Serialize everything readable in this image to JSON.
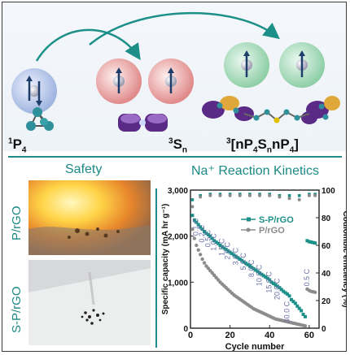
{
  "top_panel": {
    "species_1": {
      "main": "P",
      "sup": "1",
      "sub": "4"
    },
    "species_2": {
      "main": "S",
      "sup": "3",
      "sub": "n"
    },
    "species_3": {
      "prefix": "3",
      "text": "[nP",
      "s1": "4",
      "mid": "S",
      "s2": "n",
      "mid2": "nP",
      "s3": "4",
      "end": "]"
    }
  },
  "bottom_panel": {
    "safety_title": "Safety",
    "kinetics_title": "Na⁺ Reaction Kinetics",
    "photo_labels": [
      "P/rGO",
      "S-P/rGO"
    ]
  },
  "chart_data": {
    "type": "scatter",
    "xlabel": "Cycle number",
    "ylabel_left": "Specific capacity (mA hr g⁻¹)",
    "ylabel_right": "Coulombic efficiency (%)",
    "xlim": [
      0,
      65
    ],
    "ylim_left": [
      0,
      3000
    ],
    "ylim_right": [
      0,
      100
    ],
    "x_ticks": [
      "0",
      "20",
      "40",
      "60"
    ],
    "y_ticks_left": [
      "0",
      "1,000",
      "2,000",
      "3,000"
    ],
    "y_ticks_right": [
      "0",
      "20",
      "40",
      "60",
      "80",
      "100"
    ],
    "legend": [
      "S-P/rGO",
      "P/rGO"
    ],
    "rate_labels": [
      "0.1 C",
      "0.2 C",
      "0.5 C",
      "1.0 C",
      "1.5 C",
      "2.0 C",
      "3.0 C",
      "5.0 C",
      "8.0 C",
      "10.0 C",
      "15.0 C",
      "20.0 C",
      "30.0 C",
      "0.5 C"
    ],
    "series": [
      {
        "name": "S-P/rGO",
        "color": "#1b8f88",
        "x": [
          1,
          2,
          3,
          4,
          5,
          6,
          7,
          8,
          9,
          10,
          11,
          12,
          13,
          14,
          15,
          16,
          17,
          18,
          19,
          20,
          21,
          22,
          23,
          24,
          25,
          26,
          27,
          28,
          29,
          30,
          31,
          32,
          33,
          34,
          35,
          36,
          37,
          38,
          39,
          40,
          41,
          42,
          43,
          44,
          45,
          46,
          47,
          48,
          49,
          50,
          51,
          52,
          53,
          54,
          55,
          56,
          57,
          58,
          59,
          60,
          61,
          62,
          63
        ],
        "values": [
          2450,
          2350,
          2300,
          2250,
          2200,
          2150,
          2100,
          2060,
          2030,
          2000,
          1950,
          1900,
          1870,
          1840,
          1800,
          1770,
          1740,
          1710,
          1680,
          1650,
          1620,
          1590,
          1560,
          1530,
          1500,
          1470,
          1440,
          1410,
          1380,
          1350,
          1320,
          1290,
          1260,
          1230,
          1200,
          1170,
          1140,
          1110,
          1080,
          1050,
          1000,
          970,
          940,
          910,
          880,
          840,
          800,
          770,
          740,
          700,
          620,
          580,
          540,
          480,
          430,
          380,
          300,
          250,
          1900,
          1880,
          1870,
          1860,
          1850
        ]
      },
      {
        "name": "P/rGO",
        "color": "#8c8c8c",
        "x": [
          1,
          2,
          3,
          4,
          5,
          6,
          7,
          8,
          9,
          10,
          11,
          12,
          13,
          14,
          15,
          16,
          17,
          18,
          19,
          20,
          21,
          22,
          23,
          24,
          25,
          26,
          27,
          28,
          29,
          30,
          31,
          32,
          33,
          34,
          35,
          36,
          37,
          38,
          39,
          40,
          41,
          42,
          43,
          44,
          45,
          46,
          47,
          48,
          49,
          50,
          51,
          52,
          53,
          54,
          55,
          56,
          57,
          58,
          59,
          60,
          61,
          62,
          63
        ],
        "values": [
          2150,
          1950,
          1800,
          1700,
          1600,
          1500,
          1420,
          1350,
          1300,
          1250,
          1200,
          1150,
          1100,
          1050,
          1000,
          960,
          920,
          880,
          840,
          800,
          760,
          720,
          690,
          660,
          630,
          600,
          570,
          540,
          510,
          480,
          450,
          420,
          400,
          380,
          360,
          340,
          320,
          300,
          280,
          260,
          240,
          220,
          200,
          190,
          180,
          170,
          160,
          150,
          140,
          130,
          120,
          110,
          100,
          90,
          80,
          70,
          60,
          50,
          850,
          820,
          800,
          790,
          780
        ]
      },
      {
        "name": "S-P/rGO CE",
        "color": "#1b8f88",
        "x": [
          1,
          5,
          10,
          15,
          20,
          25,
          30,
          35,
          40,
          45,
          50,
          55,
          60,
          63
        ],
        "values": [
          93,
          96,
          97,
          97,
          97,
          97,
          97,
          97,
          97,
          96,
          96,
          96,
          97,
          97
        ]
      },
      {
        "name": "P/rGO CE",
        "color": "#8c8c8c",
        "x": [
          1,
          5,
          10,
          15,
          20,
          25,
          30,
          35,
          40,
          45,
          50,
          55,
          60,
          63
        ],
        "values": [
          88,
          95,
          96,
          96,
          96,
          96,
          96,
          96,
          96,
          95,
          94,
          93,
          96,
          96
        ]
      }
    ]
  },
  "colors": {
    "accent": "#1b8a85",
    "grey": "#8c8c8c"
  }
}
